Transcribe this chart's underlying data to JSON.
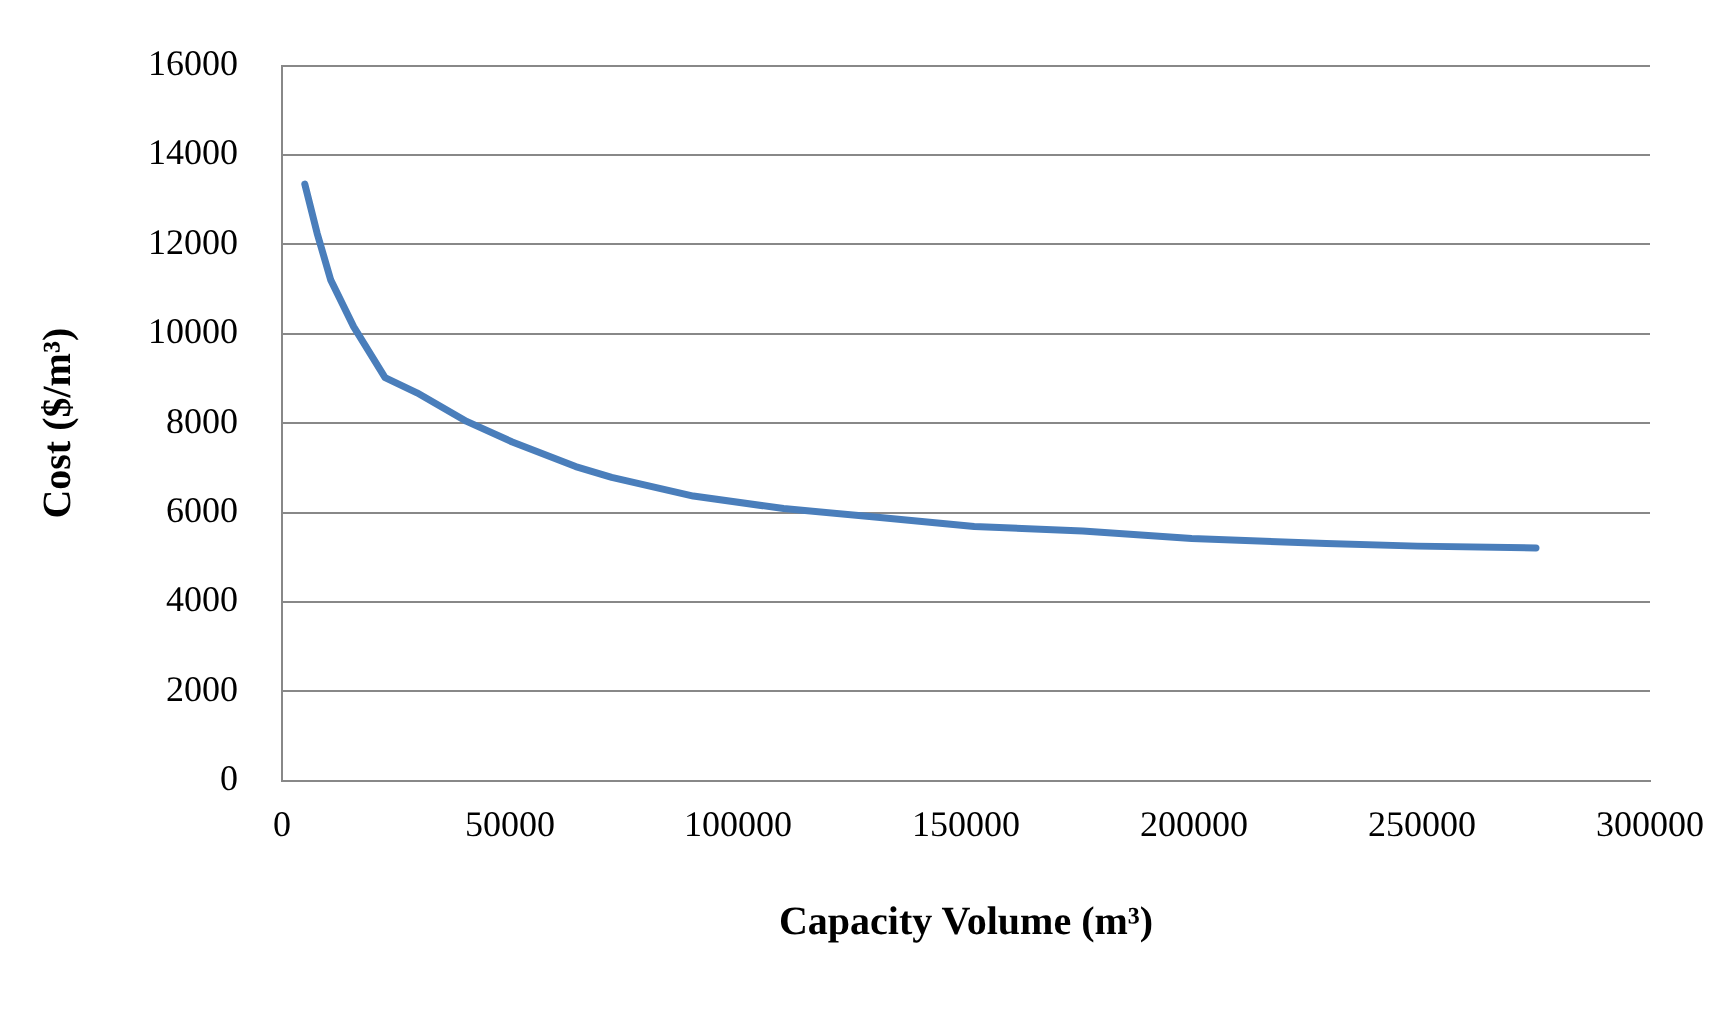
{
  "chart_data": {
    "type": "line",
    "xlabel": "Capacity Volume (m³)",
    "ylabel": "Cost ($/m³)",
    "x": [
      5000,
      7700,
      10700,
      15700,
      22600,
      29600,
      40500,
      50500,
      64400,
      72300,
      90200,
      110000,
      130000,
      151800,
      175600,
      199500,
      229000,
      249000,
      275000
    ],
    "series": [
      {
        "color": "#4a7ebb",
        "values": [
          13350,
          12250,
          11200,
          10160,
          9020,
          8680,
          8040,
          7580,
          7030,
          6790,
          6370,
          6090,
          5900,
          5690,
          5590,
          5420,
          5310,
          5250,
          5210
        ]
      }
    ],
    "xlim": [
      0,
      300000
    ],
    "xticks": [
      0,
      50000,
      100000,
      150000,
      200000,
      250000,
      300000
    ],
    "ylim": [
      0,
      16000
    ],
    "yticks": [
      0,
      2000,
      4000,
      6000,
      8000,
      10000,
      12000,
      14000,
      16000
    ],
    "grid": "y",
    "legend": false,
    "marker": "none",
    "line_style": "solid"
  }
}
